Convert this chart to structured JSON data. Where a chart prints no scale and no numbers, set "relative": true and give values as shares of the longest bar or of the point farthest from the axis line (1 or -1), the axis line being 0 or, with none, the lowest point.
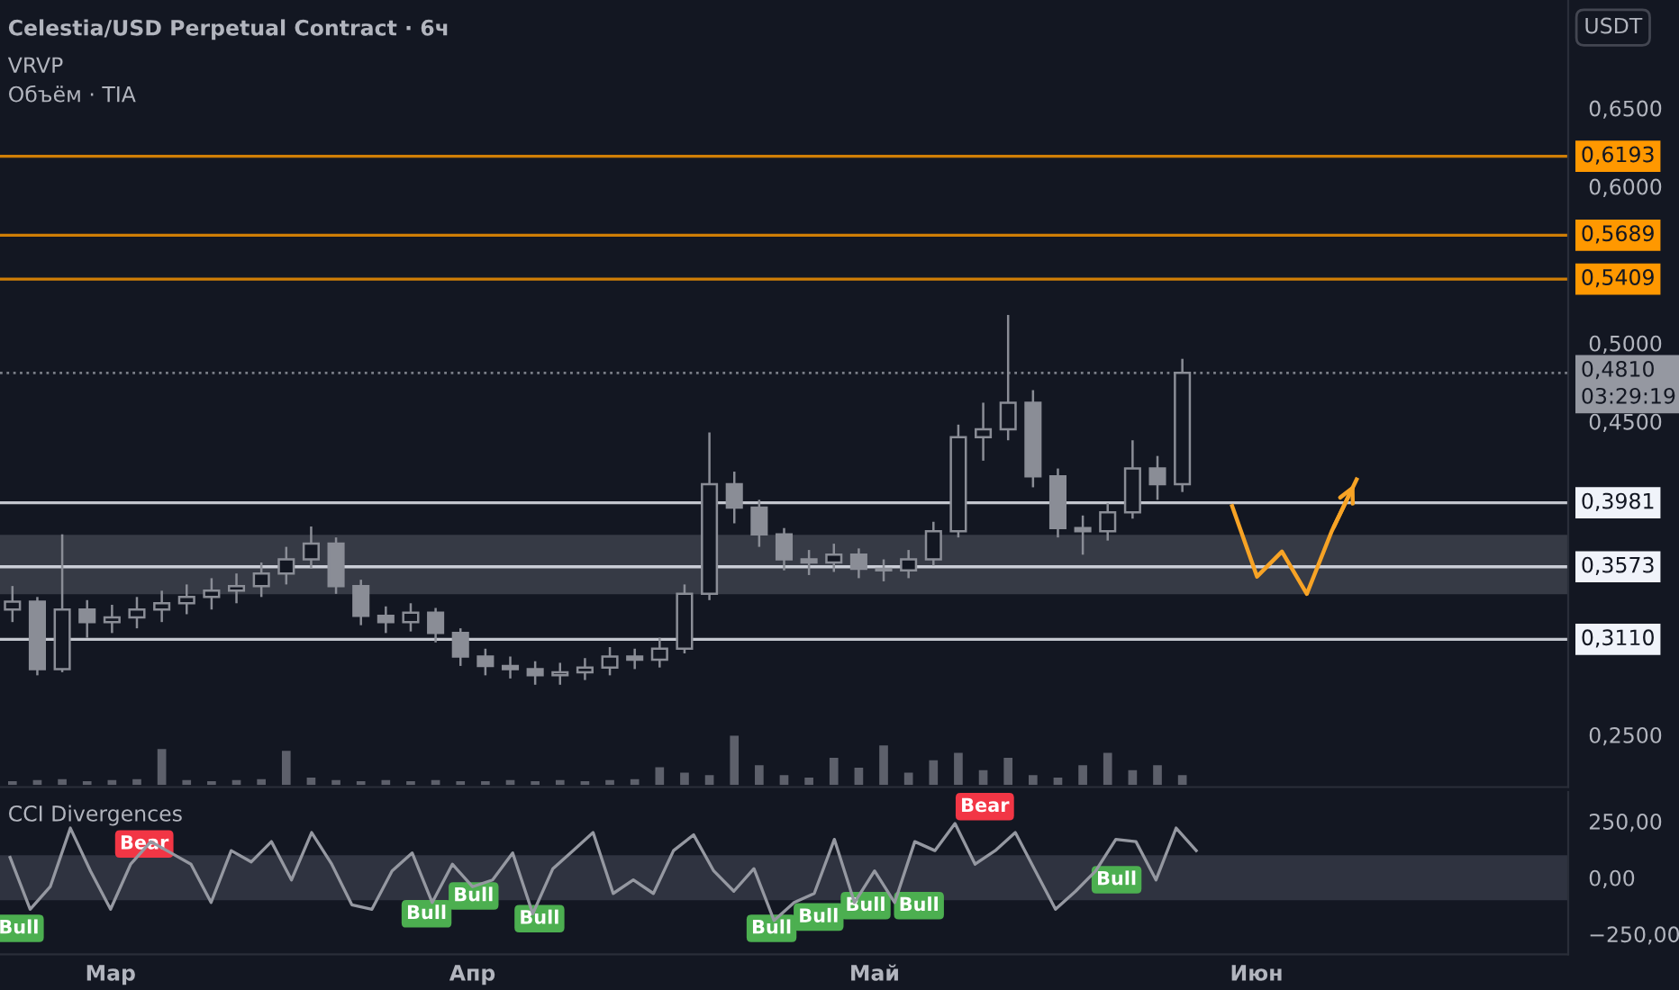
{
  "chart_data": [
    {
      "type": "candlestick",
      "title": "Celestia/USD Perpetual Contract · 6ч",
      "annotations": [
        "VRVP",
        "Объём · TIA",
        "USDT"
      ],
      "categories": [
        null,
        null,
        null,
        null,
        null,
        null,
        null,
        null,
        null,
        null,
        null,
        null,
        null,
        null,
        null,
        null,
        null,
        null,
        null,
        null,
        null,
        null,
        null,
        null,
        null,
        null,
        null,
        null,
        null,
        null,
        null,
        null,
        null,
        null,
        null,
        null,
        null,
        null,
        null,
        null,
        null,
        null,
        null,
        null,
        null,
        null,
        null,
        null,
        null,
        null,
        null,
        null,
        null,
        null,
        null,
        null,
        null,
        null,
        null,
        null,
        null,
        null,
        null
      ],
      "ohlc": [
        [
          0.33,
          0.345,
          0.322,
          0.335
        ],
        [
          0.335,
          0.338,
          0.288,
          0.292
        ],
        [
          0.292,
          0.378,
          0.29,
          0.33
        ],
        [
          0.33,
          0.336,
          0.312,
          0.322
        ],
        [
          0.322,
          0.333,
          0.315,
          0.325
        ],
        [
          0.325,
          0.338,
          0.318,
          0.33
        ],
        [
          0.33,
          0.342,
          0.322,
          0.334
        ],
        [
          0.334,
          0.346,
          0.327,
          0.338
        ],
        [
          0.338,
          0.35,
          0.33,
          0.342
        ],
        [
          0.342,
          0.353,
          0.334,
          0.345
        ],
        [
          0.345,
          0.36,
          0.338,
          0.353
        ],
        [
          0.353,
          0.37,
          0.346,
          0.362
        ],
        [
          0.362,
          0.383,
          0.356,
          0.372
        ],
        [
          0.372,
          0.376,
          0.34,
          0.345
        ],
        [
          0.345,
          0.349,
          0.32,
          0.326
        ],
        [
          0.326,
          0.332,
          0.315,
          0.322
        ],
        [
          0.322,
          0.334,
          0.316,
          0.328
        ],
        [
          0.328,
          0.331,
          0.309,
          0.315
        ],
        [
          0.315,
          0.318,
          0.294,
          0.3
        ],
        [
          0.3,
          0.305,
          0.288,
          0.294
        ],
        [
          0.294,
          0.3,
          0.286,
          0.292
        ],
        [
          0.292,
          0.297,
          0.282,
          0.288
        ],
        [
          0.288,
          0.296,
          0.282,
          0.29
        ],
        [
          0.29,
          0.299,
          0.285,
          0.293
        ],
        [
          0.293,
          0.306,
          0.288,
          0.3
        ],
        [
          0.3,
          0.305,
          0.292,
          0.298
        ],
        [
          0.298,
          0.312,
          0.293,
          0.305
        ],
        [
          0.305,
          0.346,
          0.302,
          0.34
        ],
        [
          0.34,
          0.443,
          0.336,
          0.41
        ],
        [
          0.41,
          0.418,
          0.385,
          0.395
        ],
        [
          0.395,
          0.4,
          0.37,
          0.378
        ],
        [
          0.378,
          0.382,
          0.355,
          0.362
        ],
        [
          0.362,
          0.368,
          0.352,
          0.36
        ],
        [
          0.36,
          0.372,
          0.354,
          0.365
        ],
        [
          0.365,
          0.369,
          0.35,
          0.356
        ],
        [
          0.356,
          0.362,
          0.348,
          0.355
        ],
        [
          0.355,
          0.368,
          0.35,
          0.362
        ],
        [
          0.362,
          0.386,
          0.358,
          0.38
        ],
        [
          0.38,
          0.448,
          0.376,
          0.44
        ],
        [
          0.44,
          0.462,
          0.425,
          0.445
        ],
        [
          0.445,
          0.518,
          0.438,
          0.462
        ],
        [
          0.462,
          0.47,
          0.408,
          0.415
        ],
        [
          0.415,
          0.42,
          0.376,
          0.382
        ],
        [
          0.382,
          0.39,
          0.365,
          0.38
        ],
        [
          0.38,
          0.398,
          0.374,
          0.392
        ],
        [
          0.392,
          0.438,
          0.388,
          0.42
        ],
        [
          0.42,
          0.428,
          0.4,
          0.41
        ],
        [
          0.41,
          0.49,
          0.405,
          0.481
        ],
        null,
        null,
        null,
        null,
        null,
        null,
        null,
        null,
        null,
        null,
        null,
        null,
        null,
        null,
        null
      ],
      "color": "#8a8d96",
      "series": [
        {
          "type": "line",
          "color": "#f7a325",
          "values": [
            null,
            null,
            null,
            null,
            null,
            null,
            null,
            null,
            null,
            null,
            null,
            null,
            null,
            null,
            null,
            null,
            null,
            null,
            null,
            null,
            null,
            null,
            null,
            null,
            null,
            null,
            null,
            null,
            null,
            null,
            null,
            null,
            null,
            null,
            null,
            null,
            null,
            null,
            null,
            null,
            null,
            null,
            null,
            null,
            null,
            null,
            null,
            null,
            null,
            0.396,
            0.351,
            0.367,
            0.34,
            0.38,
            0.413,
            null,
            null,
            null,
            null,
            null,
            null,
            null,
            null
          ]
        }
      ],
      "ylim": [
        0.2167,
        0.719
      ],
      "yticks": [
        {
          "value": 0.25,
          "label": "0,2500"
        },
        {
          "value": 0.45,
          "label": "0,4500"
        },
        {
          "value": 0.5,
          "label": "0,5000"
        },
        {
          "value": 0.6,
          "label": "0,6000"
        },
        {
          "value": 0.65,
          "label": "0,6500"
        }
      ],
      "ref_lines": [
        {
          "axis": "y",
          "value": 0.6193,
          "label": "0,6193",
          "color": "#ff9800"
        },
        {
          "axis": "y",
          "value": 0.5689,
          "label": "0,5689",
          "color": "#ff9800"
        },
        {
          "axis": "y",
          "value": 0.5409,
          "label": "0,5409",
          "color": "#ff9800"
        },
        {
          "axis": "y",
          "value": 0.481,
          "label": "0,4810\n03:29:19",
          "color": "#9598a1",
          "line_style": "dotted"
        },
        {
          "axis": "y",
          "value": 0.3981,
          "label": "0,3981",
          "color": "#f0f3fa"
        },
        {
          "axis": "y",
          "value": 0.3573,
          "label": "0,3573",
          "color": "#f0f3fa"
        },
        {
          "axis": "y",
          "value": 0.311,
          "label": "0,3110",
          "color": "#f0f3fa"
        }
      ],
      "bands": [
        {
          "axis": "y",
          "from": 0.3397,
          "to": 0.3776,
          "color": "#363a45"
        }
      ],
      "tick_labels": "y",
      "grid": false,
      "legend": false
    },
    {
      "type": "bar",
      "relative": true,
      "color": "#5d606b",
      "categories": [
        null,
        null,
        null,
        null,
        null,
        null,
        null,
        null,
        null,
        null,
        null,
        null,
        null,
        null,
        null,
        null,
        null,
        null,
        null,
        null,
        null,
        null,
        null,
        null,
        null,
        null,
        null,
        null,
        null,
        null,
        null,
        null,
        null,
        null,
        null,
        null,
        null,
        null,
        null,
        null,
        null,
        null,
        null,
        null,
        null,
        null,
        null,
        null,
        null,
        null,
        null,
        null,
        null,
        null,
        null,
        null,
        null,
        null,
        null,
        null,
        null,
        null,
        null
      ],
      "values": [
        0.08,
        0.1,
        0.12,
        0.08,
        0.1,
        0.12,
        0.73,
        0.1,
        0.08,
        0.1,
        0.12,
        0.69,
        0.15,
        0.1,
        0.08,
        0.1,
        0.08,
        0.1,
        0.08,
        0.08,
        0.1,
        0.08,
        0.1,
        0.08,
        0.1,
        0.12,
        0.36,
        0.25,
        0.2,
        1.0,
        0.4,
        0.2,
        0.15,
        0.55,
        0.35,
        0.8,
        0.25,
        0.5,
        0.65,
        0.3,
        0.55,
        0.2,
        0.15,
        0.4,
        0.65,
        0.3,
        0.4,
        0.2,
        null,
        null,
        null,
        null,
        null,
        null,
        null,
        null,
        null,
        null,
        null,
        null,
        null,
        null,
        null
      ],
      "tick_labels": false
    },
    {
      "type": "line",
      "title": "CCI Divergences",
      "color": "#9598a1",
      "categories": [
        null,
        null,
        null,
        null,
        null,
        "Мар",
        null,
        null,
        null,
        null,
        null,
        null,
        null,
        null,
        null,
        null,
        null,
        null,
        null,
        null,
        null,
        null,
        null,
        "Апр",
        null,
        null,
        null,
        null,
        null,
        null,
        null,
        null,
        null,
        null,
        null,
        null,
        null,
        null,
        null,
        null,
        null,
        null,
        null,
        "Май",
        null,
        null,
        null,
        null,
        null,
        null,
        null,
        null,
        null,
        null,
        null,
        null,
        null,
        null,
        null,
        null,
        null,
        null,
        "Июн",
        null,
        null,
        null,
        null,
        null,
        null,
        null,
        null,
        null,
        null,
        null,
        null,
        null,
        null,
        null
      ],
      "values": [
        90,
        -140,
        -40,
        220,
        30,
        -140,
        60,
        160,
        110,
        60,
        -110,
        120,
        70,
        160,
        -10,
        200,
        60,
        -120,
        -140,
        30,
        110,
        -110,
        60,
        -40,
        -10,
        110,
        -160,
        40,
        120,
        200,
        -70,
        -10,
        -70,
        120,
        190,
        30,
        -60,
        40,
        -190,
        -110,
        -70,
        170,
        -110,
        30,
        -110,
        160,
        120,
        240,
        60,
        120,
        200,
        30,
        -140,
        -60,
        30,
        170,
        160,
        -10,
        220,
        120,
        null,
        null,
        null,
        null,
        null,
        null,
        null,
        null,
        null,
        null,
        null,
        null,
        null,
        null,
        null,
        null,
        null,
        null
      ],
      "ylim": [
        -340,
        380
      ],
      "yticks": [
        {
          "value": 250,
          "label": "250,00"
        },
        {
          "value": 0,
          "label": "0,00"
        },
        {
          "value": -250,
          "label": "−250,00"
        }
      ],
      "bands": [
        {
          "axis": "y",
          "from": -100,
          "to": 100,
          "color": "#2f3340"
        }
      ],
      "annotations": [
        "Bull",
        "Bear",
        "Bull",
        "Bull",
        "Bull",
        "Bull",
        "Bull",
        "Bull",
        "Bull",
        "Bear",
        "Bull"
      ],
      "marker": "none",
      "line_style": "solid",
      "grid": false,
      "legend": false
    }
  ]
}
